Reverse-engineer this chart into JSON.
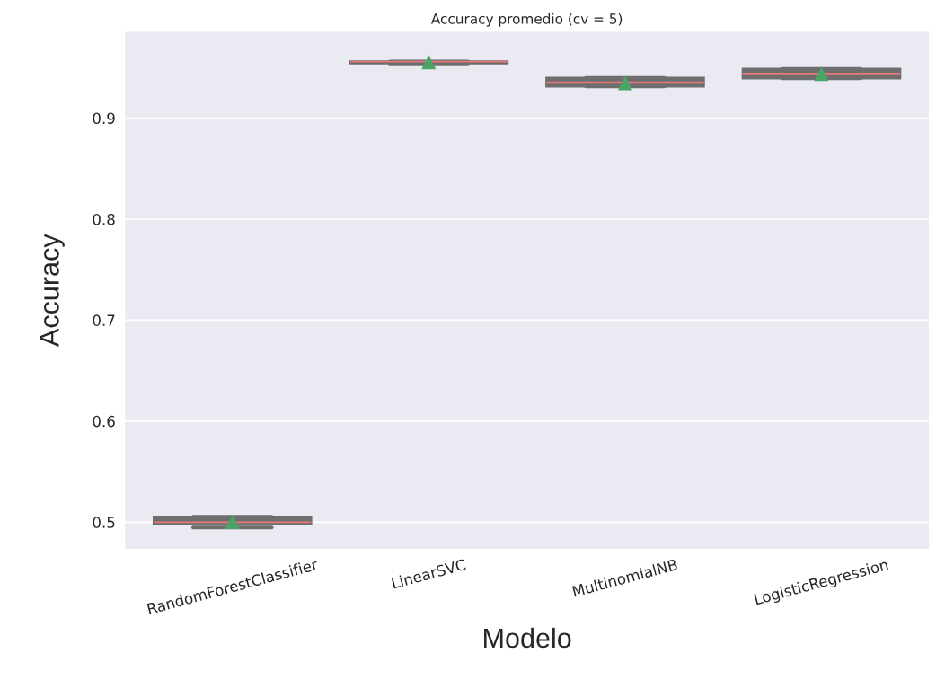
{
  "chart_data": {
    "type": "box",
    "title": "Accuracy promedio (cv = 5)",
    "xlabel": "Modelo",
    "ylabel": "Accuracy",
    "categories": [
      "RandomForestClassifier",
      "LinearSVC",
      "MultinomialNB",
      "LogisticRegression"
    ],
    "series": [
      {
        "color": "#6e6e6e",
        "boxes": [
          {
            "low": 0.4947,
            "q1": 0.4985,
            "median": 0.5,
            "q3": 0.5053,
            "high": 0.5053,
            "mean": 0.5
          },
          {
            "low": 0.9542,
            "q1": 0.9545,
            "median": 0.956,
            "q3": 0.956,
            "high": 0.956,
            "mean": 0.955
          },
          {
            "low": 0.9314,
            "q1": 0.9314,
            "median": 0.9356,
            "q3": 0.9397,
            "high": 0.9397,
            "mean": 0.9344
          },
          {
            "low": 0.9394,
            "q1": 0.9394,
            "median": 0.9441,
            "q3": 0.9486,
            "high": 0.9486,
            "mean": 0.9436
          }
        ]
      }
    ],
    "ylim": [
      0.473,
      0.986
    ],
    "yticks": [
      0.5,
      0.6,
      0.7,
      0.8,
      0.9
    ],
    "grid": "y",
    "marker": "triangle"
  }
}
